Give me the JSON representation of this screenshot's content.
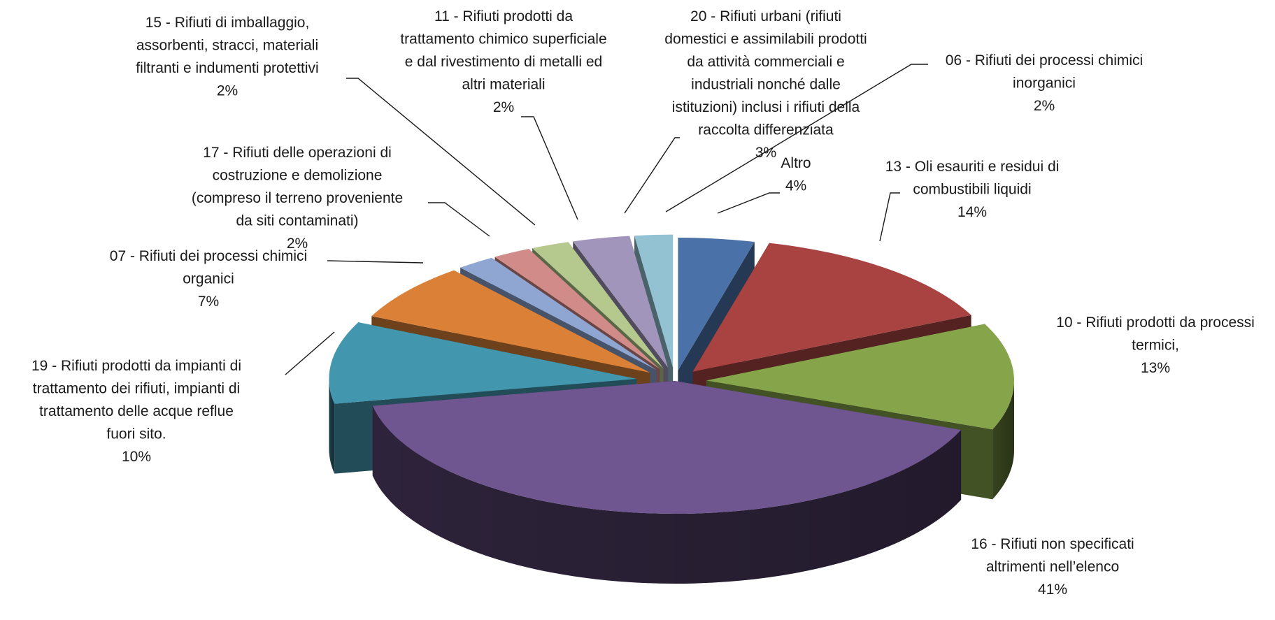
{
  "chart_data": {
    "type": "pie",
    "style": "3d-exploded",
    "title": "",
    "legend": "none",
    "slices": [
      {
        "label": "Altro",
        "percent": 4,
        "value_label": "4%",
        "color": "#4A72A8"
      },
      {
        "label": "13 - Oli esauriti e residui di combustibili liquidi",
        "percent": 14,
        "value_label": "14%",
        "color": "#A84342"
      },
      {
        "label": "10 - Rifiuti prodotti da processi termici,",
        "percent": 13,
        "value_label": "13%",
        "color": "#86A44A"
      },
      {
        "label": "16 - Rifiuti non specificati altrimenti nell’elenco",
        "percent": 41,
        "value_label": "41%",
        "color": "#6F5690"
      },
      {
        "label": "19 - Rifiuti prodotti da impianti di trattamento dei rifiuti, impianti di trattamento delle acque reflue fuori sito.",
        "percent": 10,
        "value_label": "10%",
        "color": "#4297AF"
      },
      {
        "label": "07 - Rifiuti dei processi chimici organici",
        "percent": 7,
        "value_label": "7%",
        "color": "#DA8137"
      },
      {
        "label": "17 - Rifiuti delle operazioni di costruzione e demolizione (compreso il terreno proveniente da siti contaminati)",
        "percent": 2,
        "value_label": "2%",
        "color": "#8EA6D1"
      },
      {
        "label": "15 - Rifiuti di imballaggio, assorbenti, stracci, materiali filtranti e indumenti protettivi",
        "percent": 2,
        "value_label": "2%",
        "color": "#D18C8A"
      },
      {
        "label": "11 - Rifiuti prodotti da trattamento chimico superficiale e dal rivestimento di metalli ed altri materiali",
        "percent": 2,
        "value_label": "2%",
        "color": "#B5C98E"
      },
      {
        "label": "20 - Rifiuti urbani (rifiuti domestici e assimilabili prodotti da attività commerciali e industriali nonché dalle istituzioni) inclusi i rifiuti della raccolta differenziata",
        "percent": 3,
        "value_label": "3%",
        "color": "#A295BB"
      },
      {
        "label": "06 - Rifiuti dei processi chimici inorganici",
        "percent": 2,
        "value_label": "2%",
        "color": "#93C3D3"
      }
    ]
  },
  "labels": [
    {
      "lines": [
        "Altro"
      ],
      "pct": "4%"
    },
    {
      "lines": [
        "13 - Oli esauriti e residui di",
        "combustibili liquidi"
      ],
      "pct": "14%"
    },
    {
      "lines": [
        "10 - Rifiuti prodotti da processi",
        "termici,"
      ],
      "pct": "13%"
    },
    {
      "lines": [
        "16 - Rifiuti non specificati",
        "altrimenti nell’elenco"
      ],
      "pct": "41%"
    },
    {
      "lines": [
        "19 - Rifiuti prodotti da impianti di",
        "trattamento dei rifiuti, impianti di",
        "trattamento delle acque reflue",
        "fuori sito."
      ],
      "pct": "10%"
    },
    {
      "lines": [
        "07 - Rifiuti dei processi chimici",
        "organici"
      ],
      "pct": "7%"
    },
    {
      "lines": [
        "17 - Rifiuti delle operazioni di",
        "costruzione e demolizione",
        "(compreso il terreno proveniente",
        "da siti contaminati)"
      ],
      "pct": "2%"
    },
    {
      "lines": [
        "15 - Rifiuti di imballaggio,",
        "assorbenti, stracci, materiali",
        "filtranti e indumenti protettivi"
      ],
      "pct": "2%"
    },
    {
      "lines": [
        "11 - Rifiuti prodotti da",
        "trattamento chimico superficiale",
        "e dal rivestimento di metalli ed",
        "altri materiali"
      ],
      "pct": "2%"
    },
    {
      "lines": [
        "20 - Rifiuti urbani (rifiuti",
        "domestici e assimilabili prodotti",
        "da attività commerciali e",
        "industriali nonché dalle",
        "istituzioni) inclusi i rifiuti della",
        "raccolta differenziata"
      ],
      "pct": "3%"
    },
    {
      "lines": [
        "06 - Rifiuti dei processi chimici",
        "inorganici"
      ],
      "pct": "2%"
    }
  ]
}
